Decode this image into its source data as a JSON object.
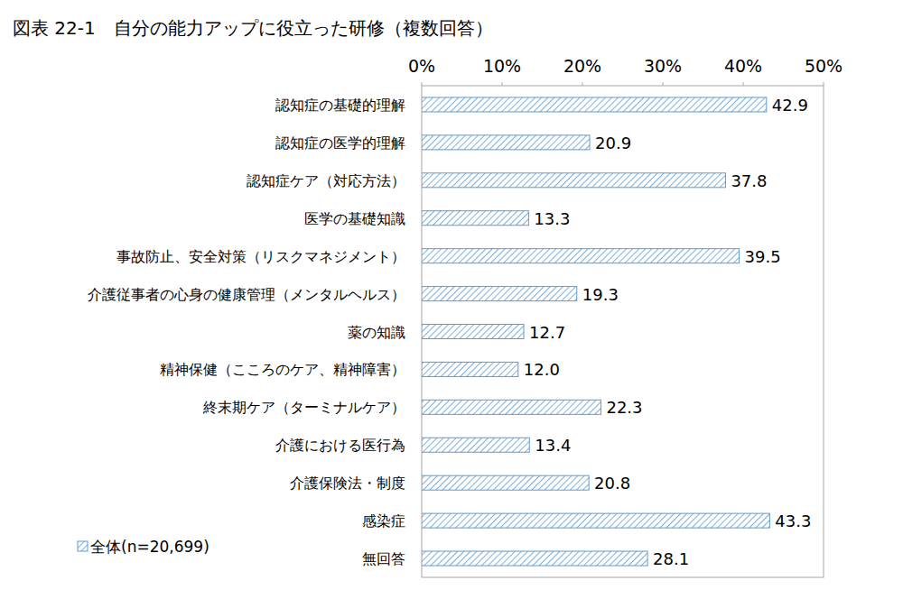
{
  "chart_data": {
    "type": "bar",
    "orientation": "horizontal",
    "title": "図表 22-1　自分の能力アップに役立った研修（複数回答）",
    "categories": [
      "認知症の基礎的理解",
      "認知症の医学的理解",
      "認知症ケア（対応方法）",
      "医学の基礎知識",
      "事故防止、安全対策（リスクマネジメント）",
      "介護従事者の心身の健康管理（メンタルヘルス）",
      "薬の知識",
      "精神保健（こころのケア、精神障害）",
      "終末期ケア（ターミナルケア）",
      "介護における医行為",
      "介護保険法・制度",
      "感染症",
      "無回答"
    ],
    "series": [
      {
        "name": "全体(n=20,699)",
        "color": "#5b9bd5",
        "values": [
          42.9,
          20.9,
          37.8,
          13.3,
          39.5,
          19.3,
          12.7,
          12.0,
          22.3,
          13.4,
          20.8,
          43.3,
          28.1
        ],
        "value_labels": [
          "42.9",
          "20.9",
          "37.8",
          "13.3",
          "39.5",
          "19.3",
          "12.7",
          "12.0",
          "22.3",
          "13.4",
          "20.8",
          "43.3",
          "28.1"
        ]
      }
    ],
    "xlim": [
      0,
      50
    ],
    "xticks": [
      {
        "value": 0,
        "label": "0%"
      },
      {
        "value": 10,
        "label": "10%"
      },
      {
        "value": 20,
        "label": "20%"
      },
      {
        "value": 30,
        "label": "30%"
      },
      {
        "value": 40,
        "label": "40%"
      },
      {
        "value": 50,
        "label": "50%"
      }
    ],
    "grid": false,
    "data_labels": true,
    "legend": "bottom-left"
  }
}
